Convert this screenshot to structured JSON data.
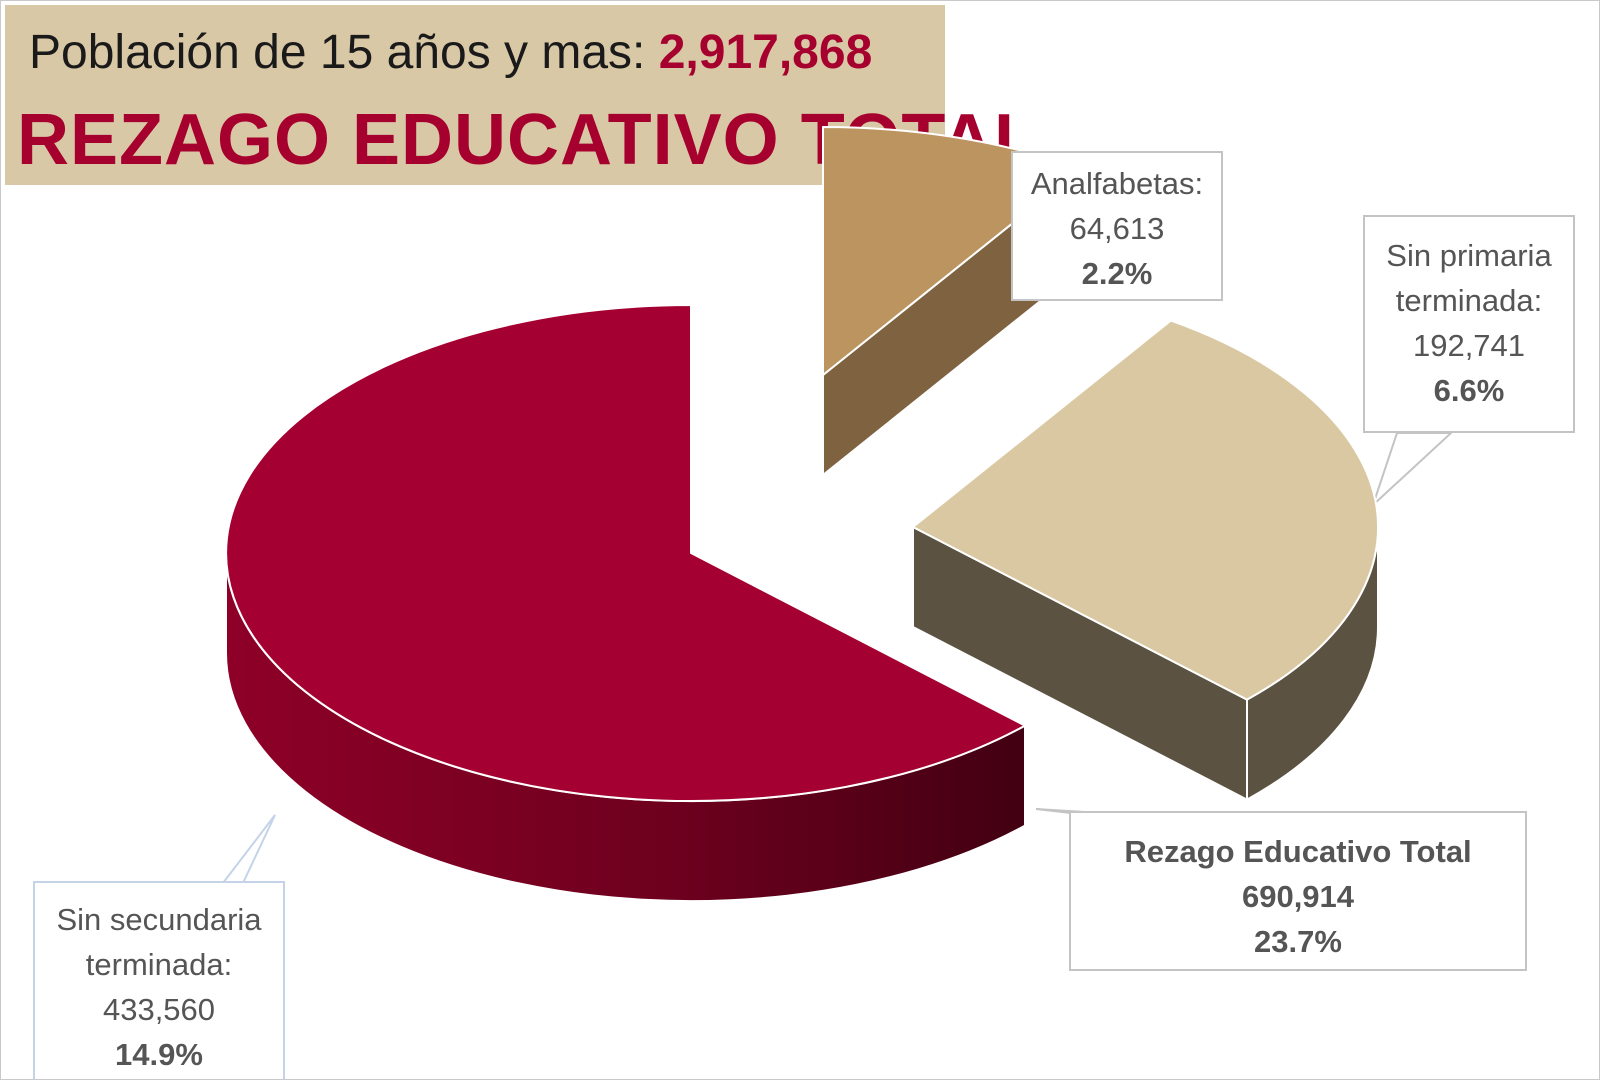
{
  "header": {
    "line1_prefix": "Población de 15 años y mas: ",
    "line1_value": "2,917,868",
    "line2": "REZAGO EDUCATIVO TOTAL"
  },
  "colors": {
    "accent": "#a6002e",
    "title_bg": "#d9c8a6"
  },
  "chart_data": {
    "type": "pie",
    "style": "3d-exploded",
    "categories": [
      "Analfabetas",
      "Sin primaria terminada",
      "Sin secundaria terminada"
    ],
    "values": [
      64613,
      192741,
      433560
    ],
    "percentages": [
      2.2,
      6.6,
      14.9
    ],
    "colors": [
      "#bb9460",
      "#d9c8a2",
      "#a50032"
    ],
    "total": {
      "label": "Rezago Educativo Total",
      "value": 690914,
      "percentage": 23.7
    }
  },
  "labels": {
    "analfabetas": {
      "name": "Analfabetas:",
      "value": "64,613",
      "pct": "2.2%"
    },
    "primaria": {
      "name1": "Sin primaria",
      "name2": "terminada:",
      "value": "192,741",
      "pct": "6.6%"
    },
    "secundaria": {
      "name1": "Sin secundaria",
      "name2": "terminada:",
      "value": "433,560",
      "pct": "14.9%"
    },
    "total": {
      "name": "Rezago Educativo Total",
      "value": "690,914",
      "pct": "23.7%"
    }
  }
}
